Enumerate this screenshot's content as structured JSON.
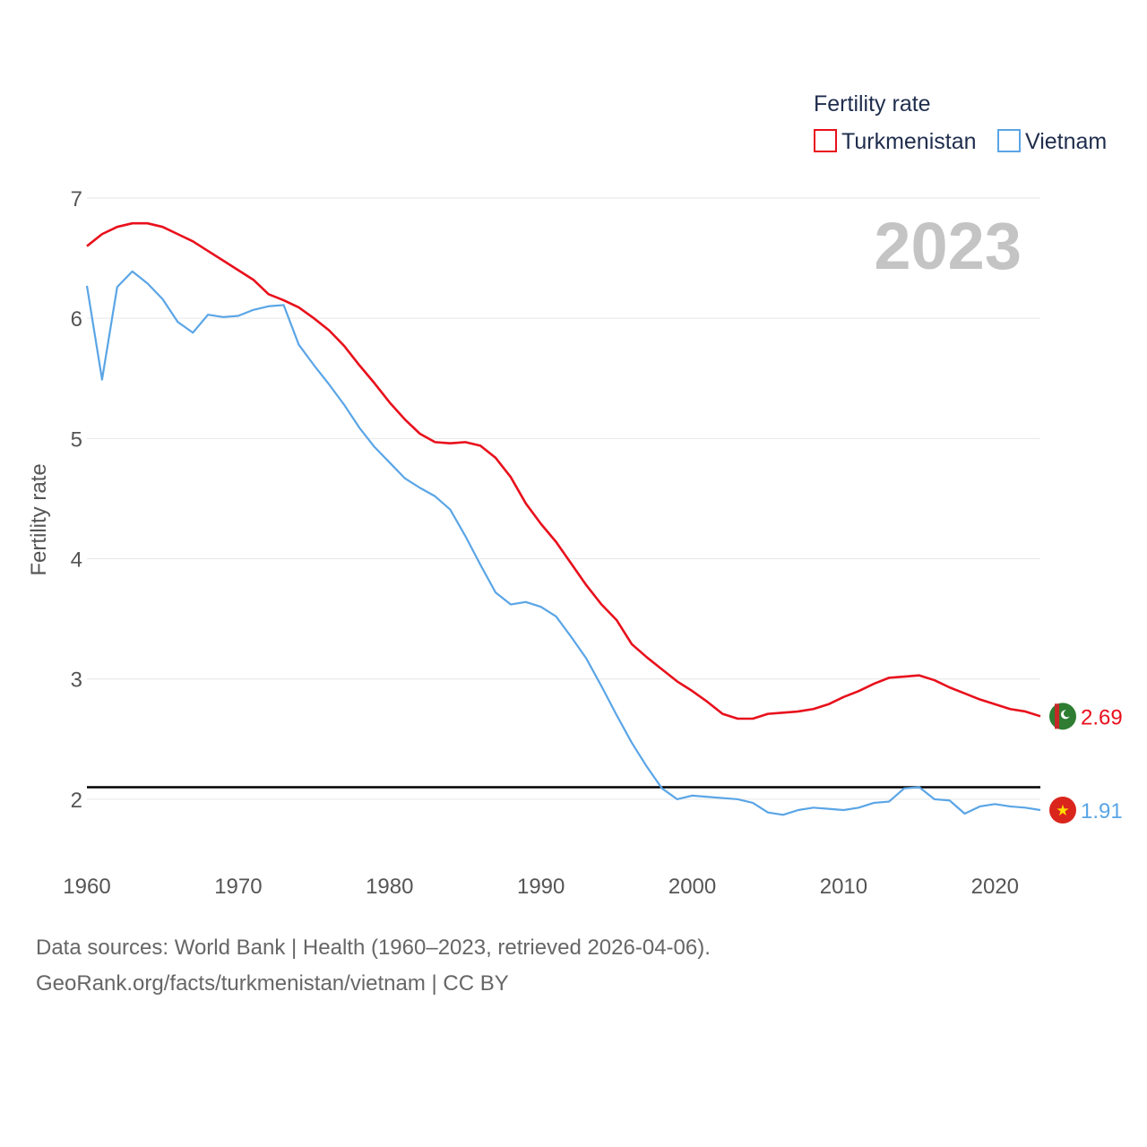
{
  "chart_data": {
    "type": "line",
    "title": "",
    "watermark_year": "2023",
    "legend": {
      "title": "Fertility rate",
      "placement": "top-right",
      "entries": [
        {
          "label": "Turkmenistan",
          "color": "#e8101c"
        },
        {
          "label": "Vietnam",
          "color": "#5aa5e6"
        }
      ]
    },
    "ylabel": "Fertility rate",
    "xlabel": "",
    "xlim": [
      1960,
      2023
    ],
    "ylim": [
      1.5,
      7.0
    ],
    "x_ticks": [
      1960,
      1970,
      1980,
      1990,
      2000,
      2010,
      2020
    ],
    "y_ticks": [
      2,
      3,
      4,
      5,
      6,
      7
    ],
    "reference_line": {
      "y": 2.1,
      "color": "#000000"
    },
    "x": [
      1960,
      1961,
      1962,
      1963,
      1964,
      1965,
      1966,
      1967,
      1968,
      1969,
      1970,
      1971,
      1972,
      1973,
      1974,
      1975,
      1976,
      1977,
      1978,
      1979,
      1980,
      1981,
      1982,
      1983,
      1984,
      1985,
      1986,
      1987,
      1988,
      1989,
      1990,
      1991,
      1992,
      1993,
      1994,
      1995,
      1996,
      1997,
      1998,
      1999,
      2000,
      2001,
      2002,
      2003,
      2004,
      2005,
      2006,
      2007,
      2008,
      2009,
      2010,
      2011,
      2012,
      2013,
      2014,
      2015,
      2016,
      2017,
      2018,
      2019,
      2020,
      2021,
      2022,
      2023
    ],
    "series": [
      {
        "name": "Turkmenistan",
        "color": "#e8101c",
        "end_label": "2.69",
        "values": [
          6.6,
          6.7,
          6.76,
          6.79,
          6.79,
          6.76,
          6.7,
          6.64,
          6.56,
          6.48,
          6.4,
          6.32,
          6.2,
          6.15,
          6.09,
          6.0,
          5.9,
          5.77,
          5.61,
          5.46,
          5.3,
          5.16,
          5.04,
          4.97,
          4.96,
          4.97,
          4.94,
          4.84,
          4.68,
          4.46,
          4.29,
          4.14,
          3.96,
          3.78,
          3.62,
          3.49,
          3.29,
          3.18,
          3.08,
          2.98,
          2.9,
          2.81,
          2.71,
          2.67,
          2.67,
          2.71,
          2.72,
          2.73,
          2.75,
          2.79,
          2.85,
          2.9,
          2.96,
          3.01,
          3.02,
          3.03,
          2.99,
          2.93,
          2.88,
          2.83,
          2.79,
          2.75,
          2.73,
          2.69
        ]
      },
      {
        "name": "Vietnam",
        "color": "#5aa5e6",
        "end_label": "1.91",
        "values": [
          6.27,
          5.49,
          6.26,
          6.39,
          6.29,
          6.16,
          5.97,
          5.88,
          6.03,
          6.01,
          6.02,
          6.07,
          6.1,
          6.11,
          5.78,
          5.61,
          5.45,
          5.28,
          5.09,
          4.93,
          4.8,
          4.67,
          4.59,
          4.52,
          4.41,
          4.19,
          3.95,
          3.72,
          3.62,
          3.64,
          3.6,
          3.52,
          3.35,
          3.17,
          2.94,
          2.7,
          2.47,
          2.27,
          2.09,
          2.0,
          2.03,
          2.02,
          2.01,
          2.0,
          1.97,
          1.89,
          1.87,
          1.91,
          1.93,
          1.92,
          1.91,
          1.93,
          1.97,
          1.98,
          2.09,
          2.1,
          2.0,
          1.99,
          1.88,
          1.94,
          1.96,
          1.94,
          1.93,
          1.91
        ]
      }
    ]
  },
  "footer": {
    "line1": "Data sources: World Bank | Health (1960–2023, retrieved 2026-04-06).",
    "line2": "GeoRank.org/facts/turkmenistan/vietnam | CC BY"
  },
  "flags": [
    {
      "country": "Turkmenistan",
      "icon": "turkmenistan-flag-icon"
    },
    {
      "country": "Vietnam",
      "icon": "vietnam-flag-icon"
    }
  ]
}
